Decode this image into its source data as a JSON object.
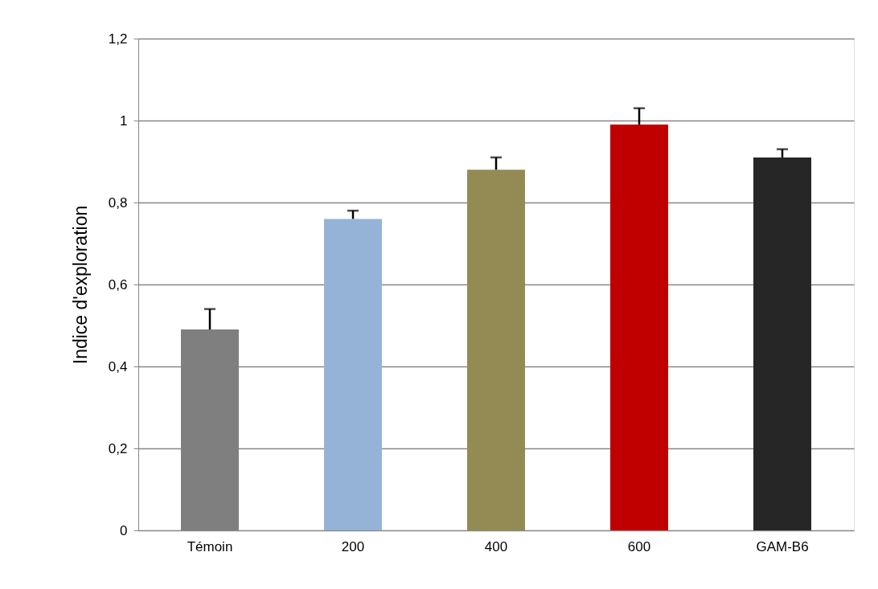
{
  "chart_data": {
    "type": "bar",
    "ylabel": "Indice d'exploration",
    "categories": [
      "Témoin",
      "200",
      "400",
      "600",
      "GAM-B6"
    ],
    "values": [
      0.49,
      0.76,
      0.88,
      0.99,
      0.91
    ],
    "colors": [
      "#7f7f7f",
      "#95b3d7",
      "#948a54",
      "#c00000",
      "#262626"
    ],
    "errors": [
      [
        0.49,
        0.54
      ],
      [
        0.76,
        0.78
      ],
      [
        0.88,
        0.91
      ],
      [
        0.99,
        1.03
      ],
      [
        0.91,
        0.93
      ]
    ],
    "ylim": [
      0,
      1.2
    ],
    "yticks": [
      0,
      {
        "value": 0.2,
        "label": "0,2"
      },
      {
        "value": 0.4,
        "label": "0,4"
      },
      {
        "value": 0.6,
        "label": "0,6"
      },
      {
        "value": 0.8,
        "label": "0,8"
      },
      1,
      {
        "value": 1.2,
        "label": "1,2"
      }
    ],
    "grid": "y"
  }
}
